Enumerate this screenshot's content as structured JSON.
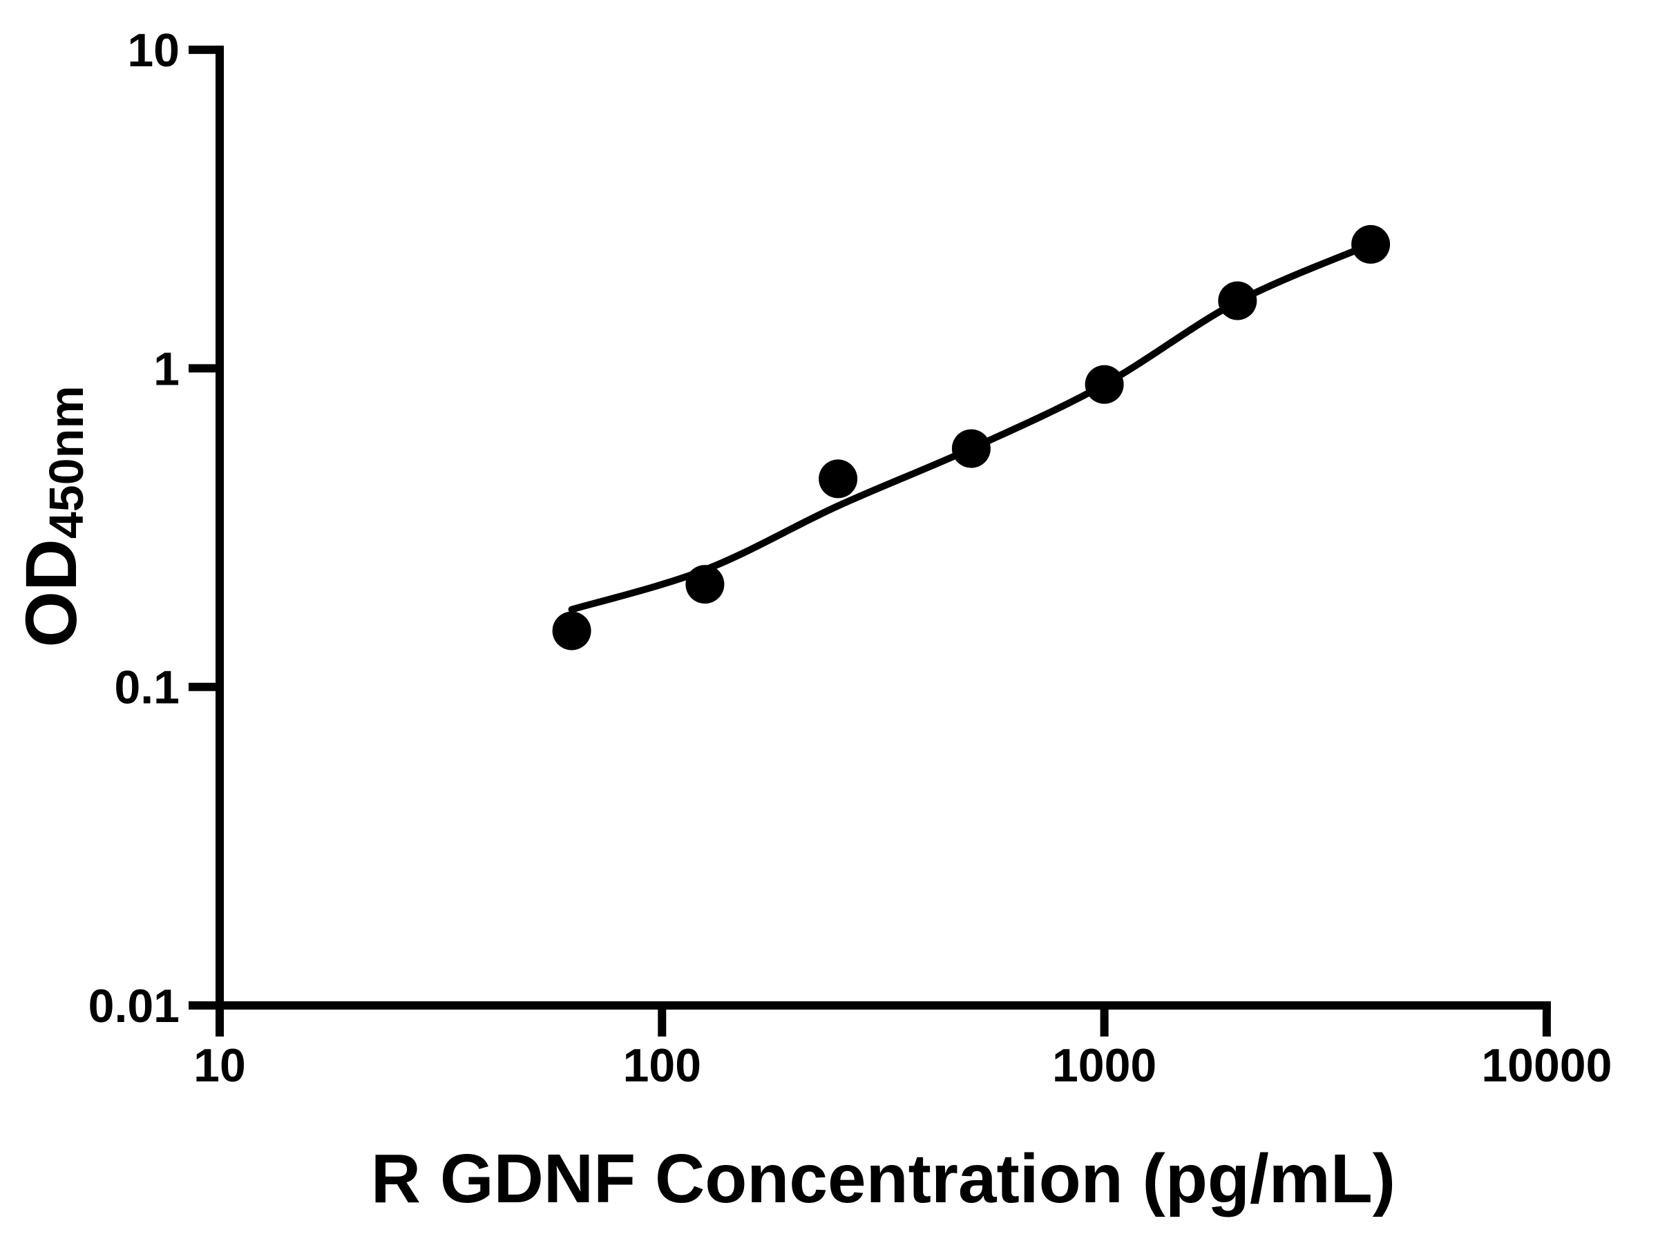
{
  "chart_data": {
    "type": "scatter",
    "title": "",
    "xlabel": "R GDNF Concentration (pg/mL)",
    "ylabel_main": "OD",
    "ylabel_sub": "450nm",
    "x_scale": "log",
    "y_scale": "log",
    "xlim": [
      10,
      10000
    ],
    "ylim": [
      0.01,
      10
    ],
    "x_ticks": [
      10,
      100,
      1000,
      10000
    ],
    "x_tick_labels": [
      "10",
      "100",
      "1000",
      "10000"
    ],
    "y_ticks": [
      10,
      1,
      0.1,
      0.01
    ],
    "y_tick_labels": [
      "10",
      "1",
      "0.1",
      "0.01"
    ],
    "grid": false,
    "legend_position": "none",
    "marker_color": "#000000",
    "line_color": "#000000",
    "axis_color": "#000000",
    "background": "#ffffff",
    "series": [
      {
        "name": "standard-curve-points",
        "x": [
          62.5,
          125,
          250,
          500,
          1000,
          2000,
          4000
        ],
        "y": [
          0.15,
          0.21,
          0.45,
          0.56,
          0.89,
          1.63,
          2.45
        ]
      }
    ],
    "trend": {
      "name": "fitted-curve",
      "x": [
        62.5,
        125,
        250,
        500,
        1000,
        2000,
        4000
      ],
      "y": [
        0.175,
        0.233,
        0.37,
        0.56,
        0.89,
        1.62,
        2.45
      ]
    }
  }
}
